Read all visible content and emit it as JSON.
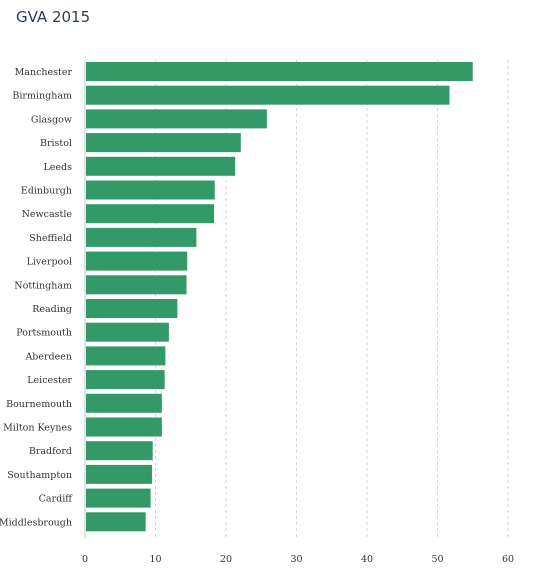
{
  "chart_data": {
    "type": "bar",
    "orientation": "horizontal",
    "title": "GVA 2015",
    "xlabel": "",
    "ylabel": "",
    "categories": [
      "Manchester",
      "Birmingham",
      "Glasgow",
      "Bristol",
      "Leeds",
      "Edinburgh",
      "Newcastle",
      "Sheffield",
      "Liverpool",
      "Nottingham",
      "Reading",
      "Portsmouth",
      "Aberdeen",
      "Leicester",
      "Bournemouth",
      "Milton Keynes",
      "Bradford",
      "Southampton",
      "Cardiff",
      "Middlesbrough"
    ],
    "values": [
      55.0,
      51.7,
      25.8,
      22.1,
      21.3,
      18.4,
      18.3,
      15.8,
      14.5,
      14.4,
      13.1,
      11.9,
      11.4,
      11.3,
      10.9,
      10.9,
      9.6,
      9.5,
      9.3,
      8.6
    ],
    "xlim": [
      0,
      60
    ],
    "xticks": [
      0,
      10,
      20,
      30,
      40,
      50,
      60
    ],
    "grid": true,
    "bar_color": "#339966",
    "gridline_color": "#d4d4d4"
  }
}
